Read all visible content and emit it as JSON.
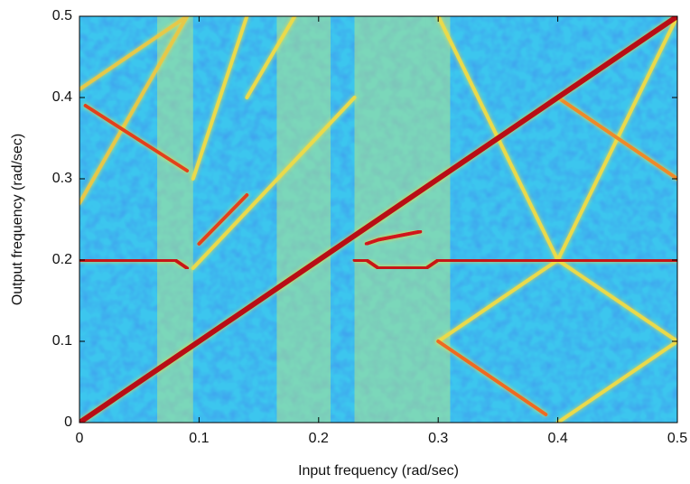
{
  "chart_data": {
    "type": "line",
    "xlabel": "Input frequency (rad/sec)",
    "ylabel": "Output frequency (rad/sec)",
    "xlim": [
      0,
      0.5
    ],
    "ylim": [
      0,
      0.5
    ],
    "xticks": [
      0,
      0.1,
      0.2,
      0.3,
      0.4,
      0.5
    ],
    "yticks": [
      0,
      0.1,
      0.2,
      0.3,
      0.4,
      0.5
    ],
    "background_color": "#3cc6ee",
    "bands": {
      "color": "#c8ec7a",
      "x": [
        [
          0.065,
          0.095
        ],
        [
          0.165,
          0.21
        ],
        [
          0.23,
          0.29
        ],
        [
          0.29,
          0.31
        ]
      ]
    },
    "series": [
      {
        "color": "#e6c84a",
        "x": [
          0.0,
          0.09,
          0.0
        ],
        "values": [
          0.41,
          0.5,
          0.27
        ]
      },
      {
        "color": "#eada4c",
        "x": [
          0.095,
          0.23
        ],
        "values": [
          0.19,
          0.4
        ]
      },
      {
        "color": "#eada4c",
        "x": [
          0.095,
          0.14
        ],
        "values": [
          0.3,
          0.5
        ]
      },
      {
        "color": "#eada4c",
        "x": [
          0.14,
          0.18
        ],
        "values": [
          0.4,
          0.5
        ]
      },
      {
        "color": "#eada4c",
        "x": [
          0.3,
          0.4,
          0.5
        ],
        "values": [
          0.5,
          0.2,
          0.1
        ]
      },
      {
        "color": "#eada4c",
        "x": [
          0.3,
          0.4,
          0.5
        ],
        "values": [
          0.1,
          0.2,
          0.5
        ]
      },
      {
        "color": "#eada4c",
        "x": [
          0.4,
          0.5
        ],
        "values": [
          0.0,
          0.1
        ]
      },
      {
        "color": "#ee8a2a",
        "x": [
          0.4,
          0.5
        ],
        "values": [
          0.4,
          0.3
        ]
      },
      {
        "color": "#ee6a22",
        "x": [
          0.3,
          0.39
        ],
        "values": [
          0.1,
          0.01
        ]
      },
      {
        "color": "#e2401c",
        "x": [
          0.005,
          0.09
        ],
        "values": [
          0.39,
          0.31
        ]
      },
      {
        "color": "#e2401c",
        "x": [
          0.1,
          0.14
        ],
        "values": [
          0.22,
          0.28
        ]
      },
      {
        "color": "#d0181a",
        "x": [
          0.24,
          0.25,
          0.285
        ],
        "values": [
          0.22,
          0.225,
          0.235
        ]
      },
      {
        "color": "#c81414",
        "x": [
          0.0,
          0.08,
          0.09
        ],
        "values": [
          0.2,
          0.2,
          0.19
        ]
      },
      {
        "color": "#c81414",
        "x": [
          0.23,
          0.24,
          0.25,
          0.29,
          0.3,
          0.5
        ],
        "values": [
          0.2,
          0.2,
          0.19,
          0.19,
          0.2,
          0.2
        ]
      },
      {
        "color": "#b80e12",
        "x": [
          0.0,
          0.5
        ],
        "values": [
          0.0,
          0.5
        ]
      }
    ]
  }
}
